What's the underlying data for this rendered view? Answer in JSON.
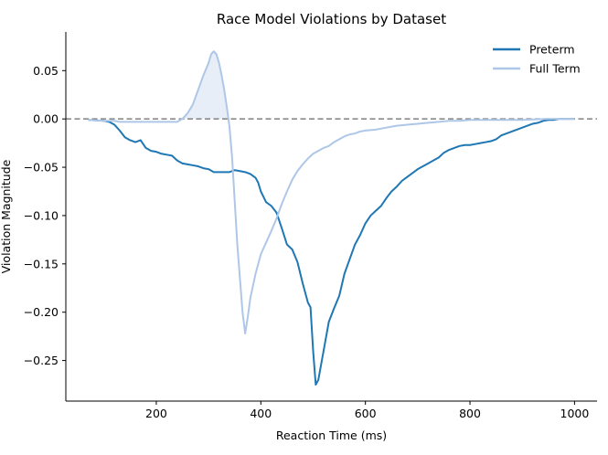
{
  "chart_data": {
    "type": "line",
    "title": "Race Model Violations by Dataset",
    "xlabel": "Reaction Time (ms)",
    "ylabel": "Violation Magnitude",
    "xlim": [
      27,
      1043
    ],
    "ylim": [
      -0.292,
      0.09
    ],
    "x_ticks": [
      200,
      400,
      600,
      800,
      1000
    ],
    "x_tick_labels": [
      "200",
      "400",
      "600",
      "800",
      "1000"
    ],
    "y_ticks": [
      0.05,
      0.0,
      -0.05,
      -0.1,
      -0.15,
      -0.2,
      -0.25
    ],
    "y_tick_labels": [
      "0.05",
      "0.00",
      "−0.05",
      "−0.10",
      "−0.15",
      "−0.20",
      "−0.25"
    ],
    "reference_line": {
      "y": 0.0,
      "style": "dashed",
      "color": "#808080"
    },
    "grid": false,
    "legend": "top-right",
    "series": [
      {
        "name": "Preterm",
        "color": "#1f77b4",
        "x": [
          70,
          100,
          110,
          120,
          130,
          140,
          150,
          160,
          170,
          180,
          190,
          200,
          210,
          220,
          230,
          240,
          250,
          260,
          270,
          280,
          290,
          300,
          310,
          320,
          330,
          340,
          350,
          360,
          370,
          380,
          390,
          395,
          400,
          410,
          420,
          430,
          440,
          450,
          460,
          470,
          480,
          490,
          495,
          500,
          505,
          510,
          520,
          530,
          540,
          550,
          560,
          570,
          580,
          590,
          600,
          610,
          620,
          630,
          640,
          650,
          660,
          670,
          680,
          690,
          700,
          710,
          720,
          730,
          740,
          750,
          760,
          770,
          780,
          790,
          800,
          810,
          820,
          830,
          840,
          850,
          860,
          870,
          880,
          890,
          900,
          910,
          920,
          930,
          940,
          950,
          960,
          970,
          980,
          990,
          1000
        ],
        "y": [
          -0.001,
          -0.002,
          -0.003,
          -0.006,
          -0.012,
          -0.019,
          -0.022,
          -0.024,
          -0.022,
          -0.03,
          -0.033,
          -0.034,
          -0.036,
          -0.037,
          -0.038,
          -0.043,
          -0.046,
          -0.047,
          -0.048,
          -0.049,
          -0.051,
          -0.052,
          -0.055,
          -0.055,
          -0.055,
          -0.055,
          -0.053,
          -0.054,
          -0.055,
          -0.057,
          -0.061,
          -0.066,
          -0.075,
          -0.086,
          -0.09,
          -0.097,
          -0.113,
          -0.13,
          -0.135,
          -0.148,
          -0.17,
          -0.19,
          -0.195,
          -0.24,
          -0.275,
          -0.27,
          -0.24,
          -0.21,
          -0.196,
          -0.183,
          -0.16,
          -0.145,
          -0.13,
          -0.12,
          -0.108,
          -0.1,
          -0.095,
          -0.09,
          -0.082,
          -0.075,
          -0.07,
          -0.064,
          -0.06,
          -0.056,
          -0.052,
          -0.049,
          -0.046,
          -0.043,
          -0.04,
          -0.035,
          -0.032,
          -0.03,
          -0.028,
          -0.027,
          -0.027,
          -0.026,
          -0.025,
          -0.024,
          -0.023,
          -0.021,
          -0.017,
          -0.015,
          -0.013,
          -0.011,
          -0.009,
          -0.007,
          -0.005,
          -0.004,
          -0.002,
          -0.001,
          -0.001,
          0.0,
          0.0,
          0.0,
          0.0
        ]
      },
      {
        "name": "Full Term",
        "color": "#aec7e8",
        "x": [
          70,
          100,
          120,
          130,
          150,
          200,
          240,
          250,
          260,
          270,
          280,
          290,
          300,
          305,
          310,
          315,
          320,
          325,
          330,
          335,
          340,
          345,
          350,
          355,
          360,
          365,
          370,
          375,
          380,
          390,
          400,
          410,
          420,
          430,
          440,
          450,
          460,
          470,
          480,
          490,
          500,
          510,
          520,
          530,
          540,
          550,
          560,
          570,
          580,
          590,
          600,
          620,
          640,
          660,
          680,
          700,
          720,
          740,
          760,
          780,
          800,
          850,
          900,
          950,
          1000
        ],
        "y": [
          -0.001,
          -0.002,
          -0.002,
          -0.003,
          -0.003,
          -0.003,
          -0.003,
          0.0,
          0.006,
          0.015,
          0.03,
          0.045,
          0.058,
          0.067,
          0.07,
          0.067,
          0.058,
          0.045,
          0.03,
          0.012,
          -0.008,
          -0.04,
          -0.085,
          -0.13,
          -0.165,
          -0.2,
          -0.222,
          -0.205,
          -0.185,
          -0.16,
          -0.14,
          -0.128,
          -0.116,
          -0.103,
          -0.088,
          -0.075,
          -0.063,
          -0.054,
          -0.047,
          -0.041,
          -0.036,
          -0.033,
          -0.03,
          -0.028,
          -0.024,
          -0.021,
          -0.018,
          -0.016,
          -0.015,
          -0.013,
          -0.012,
          -0.011,
          -0.009,
          -0.007,
          -0.006,
          -0.005,
          -0.004,
          -0.003,
          -0.002,
          -0.002,
          -0.001,
          -0.001,
          -0.001,
          0.0,
          0.0
        ]
      }
    ]
  }
}
